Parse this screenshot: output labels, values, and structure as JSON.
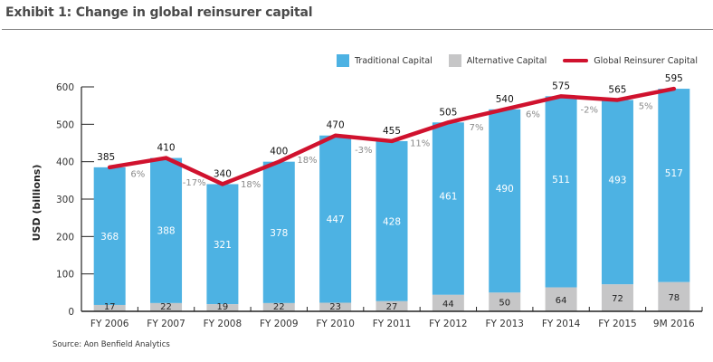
{
  "header": {
    "title": "Exhibit 1: Change in global reinsurer capital",
    "source": "Source: Aon Benfield Analytics"
  },
  "colors": {
    "traditional": "#4db2e3",
    "alternative": "#c6c6c7",
    "line": "#d0122e",
    "pct_text": "#8a8a8a"
  },
  "chart_data": {
    "type": "bar",
    "stacked": true,
    "title": "Exhibit 1: Change in global reinsurer capital",
    "xlabel": "",
    "ylabel": "USD (billions)",
    "ylim": [
      0,
      600
    ],
    "yticks": [
      0,
      100,
      200,
      300,
      400,
      500,
      600
    ],
    "grid": false,
    "legend_position": "top-right",
    "categories": [
      "FY 2006",
      "FY 2007",
      "FY 2008",
      "FY 2009",
      "FY 2010",
      "FY 2011",
      "FY 2012",
      "FY 2013",
      "FY 2014",
      "FY 2015",
      "9M 2016"
    ],
    "series": [
      {
        "name": "Alternative Capital",
        "kind": "bar",
        "values": [
          17,
          22,
          19,
          22,
          23,
          27,
          44,
          50,
          64,
          72,
          78
        ]
      },
      {
        "name": "Traditional Capital",
        "kind": "bar",
        "values": [
          368,
          388,
          321,
          378,
          447,
          428,
          461,
          490,
          511,
          493,
          517
        ]
      },
      {
        "name": "Global Reinsurer Capital",
        "kind": "line",
        "values": [
          385,
          410,
          340,
          400,
          470,
          455,
          505,
          540,
          575,
          565,
          595
        ]
      }
    ],
    "pct_change_labels": [
      "6%",
      "-17%",
      "18%",
      "18%",
      "-3%",
      "11%",
      "7%",
      "6%",
      "-2%",
      "5%"
    ],
    "legend": [
      "Traditional Capital",
      "Alternative Capital",
      "Global Reinsurer Capital"
    ]
  }
}
